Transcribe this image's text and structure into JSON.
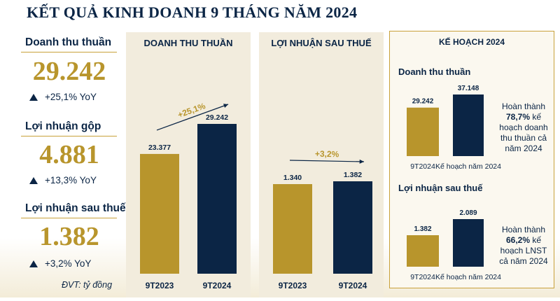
{
  "title": "KẾT QUẢ KINH DOANH 9 THÁNG NĂM 2024",
  "kpis": [
    {
      "label": "Doanh thu thuần",
      "value": "29.242",
      "change": "+25,1% YoY"
    },
    {
      "label": "Lợi nhuận gộp",
      "value": "4.881",
      "change": "+13,3% YoY"
    },
    {
      "label": "Lợi nhuận sau thuế",
      "value": "1.382",
      "change": "+3,2% YoY"
    }
  ],
  "unit_note": "ĐVT: tỷ đồng",
  "colors": {
    "navy": "#0b2545",
    "gold": "#b8952c",
    "panel": "#f2ecdd"
  },
  "chart_data": [
    {
      "type": "bar",
      "title": "DOANH THU THUẦN",
      "categories": [
        "9T2023",
        "9T2024"
      ],
      "values": [
        23377,
        29242
      ],
      "value_labels": [
        "23.377",
        "29.242"
      ],
      "ylim": [
        0,
        29242
      ],
      "growth_label": "+25,1%"
    },
    {
      "type": "bar",
      "title": "LỢI NHUẬN SAU THUẾ",
      "categories": [
        "9T2023",
        "9T2024"
      ],
      "values": [
        1340,
        1382
      ],
      "value_labels": [
        "1.340",
        "1.382"
      ],
      "ylim": [
        0,
        1382
      ],
      "growth_label": "+3,2%"
    },
    {
      "type": "bar",
      "title": "Doanh thu thuần",
      "categories": [
        "9T2024",
        "Kế hoạch năm 2024"
      ],
      "values": [
        29242,
        37148
      ],
      "value_labels": [
        "29.242",
        "37.148"
      ],
      "ylim": [
        0,
        37148
      ]
    },
    {
      "type": "bar",
      "title": "Lợi nhuận sau thuế",
      "categories": [
        "9T2024",
        "Kế hoạch năm 2024"
      ],
      "values": [
        1382,
        2089
      ],
      "value_labels": [
        "1.382",
        "2.089"
      ],
      "ylim": [
        0,
        2089
      ]
    }
  ],
  "plan": {
    "header": "KẾ HOẠCH 2024",
    "revenue_note": {
      "pre": "Hoàn thành",
      "pct": "78,7%",
      "post": "kế hoạch doanh thu thuần cả năm 2024"
    },
    "profit_note": {
      "pre": "Hoàn thành",
      "pct": "66,2%",
      "post": "kế hoạch LNST cả năm 2024"
    }
  }
}
